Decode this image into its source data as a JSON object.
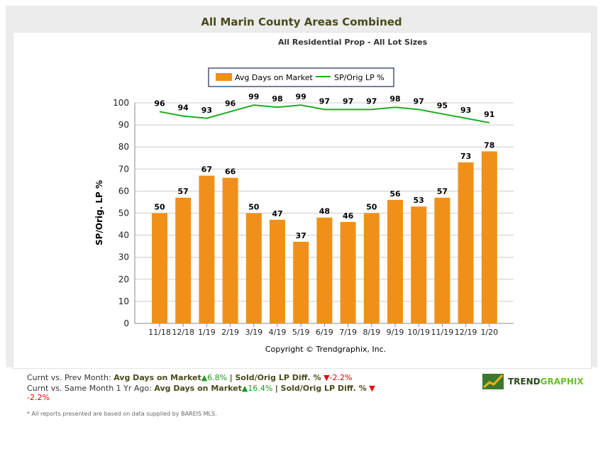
{
  "title": "All Marin County Areas Combined",
  "subtitle": "All Residential Prop - All Lot Sizes",
  "chart_data": {
    "type": "bar",
    "categories": [
      "11/18",
      "12/18",
      "1/19",
      "2/19",
      "3/19",
      "4/19",
      "5/19",
      "6/19",
      "7/19",
      "8/19",
      "9/19",
      "10/19",
      "11/19",
      "12/19",
      "1/20"
    ],
    "series": [
      {
        "name": "Avg Days on Market",
        "type": "bar",
        "color": "#f0901a",
        "values": [
          50,
          57,
          67,
          66,
          50,
          47,
          37,
          48,
          46,
          50,
          56,
          53,
          57,
          73,
          78
        ]
      },
      {
        "name": "SP/Orig LP %",
        "type": "line",
        "color": "#22aa22",
        "values": [
          96,
          94,
          93,
          96,
          99,
          98,
          99,
          97,
          97,
          97,
          98,
          97,
          95,
          93,
          91
        ]
      }
    ],
    "ylabel": "SP/Orig. LP %",
    "ylim": [
      0,
      100
    ],
    "yticks": [
      0,
      10,
      20,
      30,
      40,
      50,
      60,
      70,
      80,
      90,
      100
    ],
    "grid": true,
    "legend": "top-center",
    "copyright": "Copyright © Trendgraphix, Inc."
  },
  "stats": {
    "row1": {
      "label": "Curnt vs. Prev Month:",
      "m1": "Avg Days on Market",
      "v1": "6.8%",
      "m2": "| Sold/Orig LP Diff. %",
      "v2": "-2.2%"
    },
    "row2": {
      "label": "Curnt vs. Same Month 1 Yr Ago:",
      "m1": "Avg Days on Market",
      "v1": "16.4%",
      "m2": "| Sold/Orig LP Diff. %",
      "v2": "-2.2%"
    }
  },
  "footnote": "* All reports presented are based on data supplied by BAREIS MLS.",
  "logo": {
    "a": "TREND",
    "b": "GRAPHIX"
  }
}
